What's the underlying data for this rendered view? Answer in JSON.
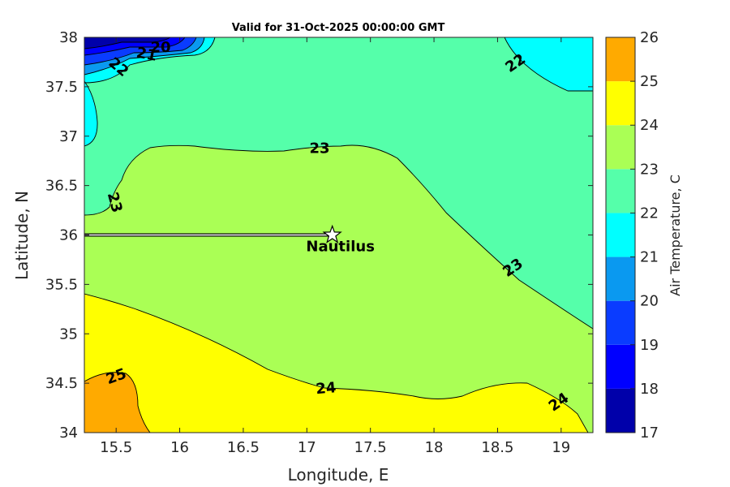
{
  "chart_data": {
    "type": "contour",
    "title": "Valid for 31-Oct-2025 00:00:00 GMT",
    "xlabel": "Longitude, E",
    "ylabel": "Latitude, N",
    "xlim": [
      15.25,
      19.25
    ],
    "ylim": [
      34,
      38
    ],
    "xticks": [
      "15.5",
      "16",
      "16.5",
      "17",
      "17.5",
      "18",
      "18.5",
      "19"
    ],
    "xtick_values": [
      15.5,
      16,
      16.5,
      17,
      17.5,
      18,
      18.5,
      19
    ],
    "yticks": [
      "34",
      "34.5",
      "35",
      "35.5",
      "36",
      "36.5",
      "37",
      "37.5",
      "38"
    ],
    "ytick_values": [
      34,
      34.5,
      35,
      35.5,
      36,
      36.5,
      37,
      37.5,
      38
    ],
    "colorbar": {
      "label": "Air Temperature, C",
      "levels": [
        17,
        18,
        19,
        20,
        21,
        22,
        23,
        24,
        25,
        26
      ],
      "tick_labels": [
        "17",
        "18",
        "19",
        "20",
        "21",
        "22",
        "23",
        "24",
        "25",
        "26"
      ],
      "colors": [
        "#0000aa",
        "#0000ff",
        "#0a3cff",
        "#0a99f0",
        "#00ffff",
        "#55ffaa",
        "#aaff55",
        "#ffff00",
        "#ffaa00",
        "#ff5500"
      ]
    },
    "contour_labels": [
      {
        "text": "20",
        "lon": 15.85,
        "lat": 37.9,
        "angle": 0
      },
      {
        "text": "21",
        "lon": 15.74,
        "lat": 37.83,
        "angle": -10
      },
      {
        "text": "22",
        "lon": 15.52,
        "lat": 37.7,
        "angle": -40
      },
      {
        "text": "22",
        "lon": 18.64,
        "lat": 37.74,
        "angle": 35
      },
      {
        "text": "23",
        "lon": 17.1,
        "lat": 36.88,
        "angle": 0
      },
      {
        "text": "23",
        "lon": 15.49,
        "lat": 36.33,
        "angle": -75
      },
      {
        "text": "23",
        "lon": 18.62,
        "lat": 35.67,
        "angle": 35
      },
      {
        "text": "24",
        "lon": 17.15,
        "lat": 34.45,
        "angle": 5
      },
      {
        "text": "24",
        "lon": 18.98,
        "lat": 34.31,
        "angle": 35
      },
      {
        "text": "25",
        "lon": 15.5,
        "lat": 34.57,
        "angle": 20
      }
    ],
    "track": {
      "lon": [
        15.25,
        17.2
      ],
      "lat": [
        36.0,
        36.0
      ]
    },
    "marker": {
      "label": "Nautilus",
      "lon": 17.2,
      "lat": 36.0
    }
  }
}
